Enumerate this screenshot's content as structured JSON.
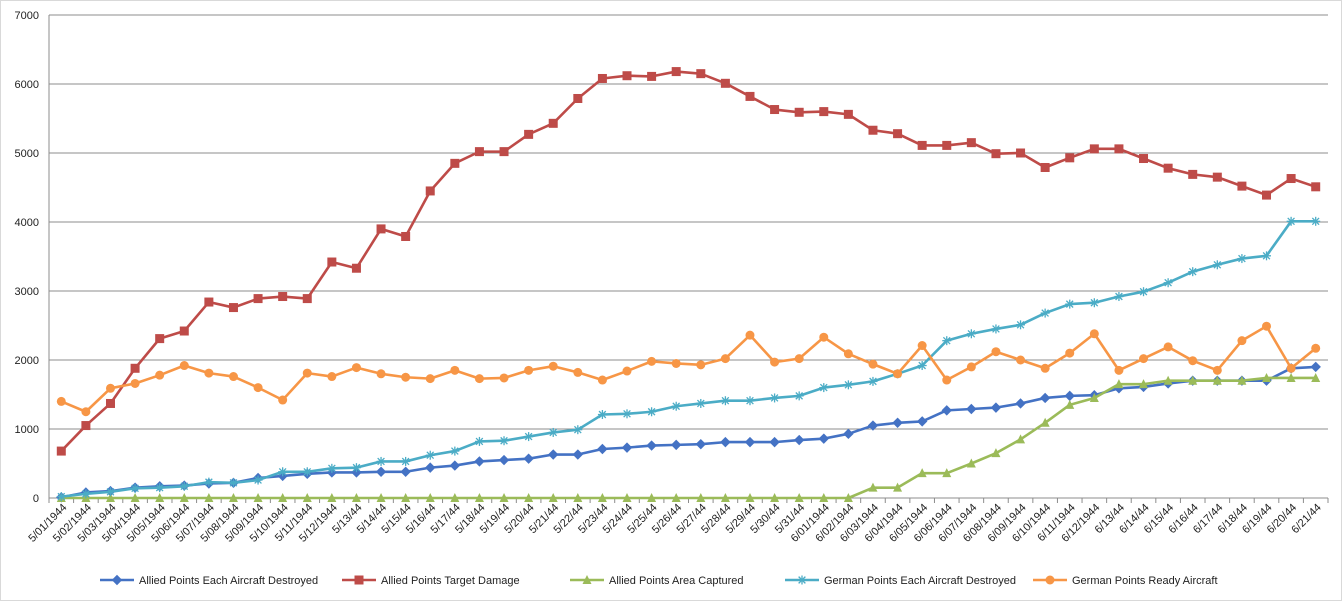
{
  "chart_data": {
    "type": "line",
    "title": "",
    "xlabel": "",
    "ylabel": "",
    "ylim": [
      0,
      7000
    ],
    "y_ticks": [
      0,
      1000,
      2000,
      3000,
      4000,
      5000,
      6000,
      7000
    ],
    "grid": "horizontal",
    "legend_position": "bottom",
    "categories": [
      "5/01/1944",
      "5/02/1944",
      "5/03/1944",
      "5/04/1944",
      "5/05/1944",
      "5/06/1944",
      "5/07/1944",
      "5/08/1944",
      "5/09/1944",
      "5/10/1944",
      "5/11/1944",
      "5/12/1944",
      "5/13/44",
      "5/14/44",
      "5/15/44",
      "5/16/44",
      "5/17/44",
      "5/18/44",
      "5/19/44",
      "5/20/44",
      "5/21/44",
      "5/22/44",
      "5/23/44",
      "5/24/44",
      "5/25/44",
      "5/26/44",
      "5/27/44",
      "5/28/44",
      "5/29/44",
      "5/30/44",
      "5/31/44",
      "6/01/1944",
      "6/02/1944",
      "6/03/1944",
      "6/04/1944",
      "6/05/1944",
      "6/06/1944",
      "6/07/1944",
      "6/08/1944",
      "6/09/1944",
      "6/10/1944",
      "6/11/1944",
      "6/12/1944",
      "6/13/44",
      "6/14/44",
      "6/15/44",
      "6/16/44",
      "6/17/44",
      "6/18/44",
      "6/19/44",
      "6/20/44",
      "6/21/44"
    ],
    "series": [
      {
        "name": "Allied Points Each Aircraft Destroyed",
        "color": "#4472C4",
        "marker": "diamond",
        "values": [
          10,
          80,
          100,
          150,
          170,
          180,
          210,
          220,
          290,
          320,
          350,
          370,
          370,
          380,
          380,
          440,
          470,
          530,
          550,
          570,
          630,
          630,
          710,
          730,
          760,
          770,
          780,
          810,
          810,
          810,
          840,
          860,
          930,
          1050,
          1090,
          1110,
          1270,
          1290,
          1310,
          1370,
          1450,
          1480,
          1490,
          1590,
          1610,
          1660,
          1700,
          1700,
          1700,
          1700,
          1880,
          1900
        ]
      },
      {
        "name": "Allied Points Target Damage",
        "color": "#BE4B48",
        "marker": "square",
        "values": [
          680,
          1050,
          1370,
          1880,
          2310,
          2420,
          2840,
          2760,
          2890,
          2920,
          2890,
          3420,
          3330,
          3900,
          3790,
          4450,
          4850,
          5020,
          5020,
          5270,
          5430,
          5790,
          6080,
          6120,
          6110,
          6180,
          6150,
          6010,
          5820,
          5630,
          5590,
          5600,
          5560,
          5330,
          5280,
          5110,
          5110,
          5150,
          4990,
          5000,
          4790,
          4930,
          5060,
          5060,
          4920,
          4780,
          4690,
          4650,
          4520,
          4390,
          4630,
          4510
        ]
      },
      {
        "name": "Allied Points Area Captured",
        "color": "#9BBB59",
        "marker": "triangle",
        "values": [
          0,
          0,
          0,
          0,
          0,
          0,
          0,
          0,
          0,
          0,
          0,
          0,
          0,
          0,
          0,
          0,
          0,
          0,
          0,
          0,
          0,
          0,
          0,
          0,
          0,
          0,
          0,
          0,
          0,
          0,
          0,
          0,
          0,
          150,
          150,
          360,
          360,
          500,
          650,
          850,
          1090,
          1350,
          1450,
          1650,
          1650,
          1700,
          1700,
          1700,
          1700,
          1740,
          1740,
          1740
        ]
      },
      {
        "name": "German Points Each Aircraft Destroyed",
        "color": "#4BACC6",
        "marker": "star",
        "values": [
          20,
          60,
          90,
          140,
          150,
          170,
          230,
          220,
          260,
          380,
          380,
          430,
          440,
          530,
          530,
          620,
          680,
          820,
          830,
          890,
          950,
          990,
          1210,
          1220,
          1250,
          1330,
          1370,
          1410,
          1410,
          1450,
          1480,
          1600,
          1640,
          1690,
          1800,
          1920,
          2280,
          2380,
          2450,
          2510,
          2680,
          2810,
          2830,
          2920,
          2990,
          3120,
          3280,
          3380,
          3470,
          3510,
          4010,
          4010
        ]
      },
      {
        "name": "German Points Ready Aircraft",
        "color": "#F79646",
        "marker": "circle",
        "values": [
          1400,
          1250,
          1590,
          1660,
          1780,
          1920,
          1810,
          1760,
          1600,
          1420,
          1810,
          1760,
          1890,
          1800,
          1750,
          1730,
          1850,
          1730,
          1740,
          1850,
          1910,
          1820,
          1710,
          1840,
          1980,
          1950,
          1930,
          2020,
          2360,
          1970,
          2020,
          2330,
          2090,
          1940,
          1800,
          2210,
          1710,
          1900,
          2120,
          2000,
          1880,
          2100,
          2380,
          1850,
          2020,
          2190,
          1990,
          1850,
          2280,
          2490,
          1880,
          2170
        ]
      }
    ]
  }
}
